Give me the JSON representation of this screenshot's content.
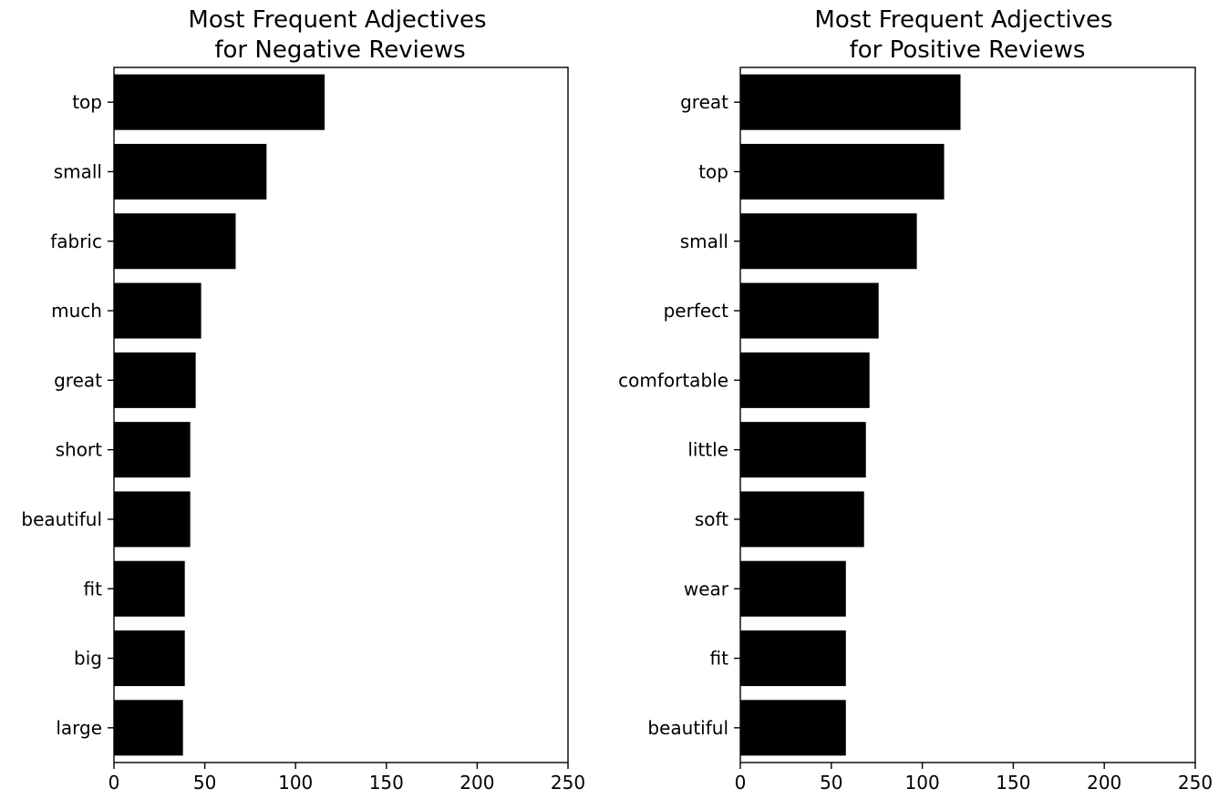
{
  "chart_data": [
    {
      "type": "bar",
      "orientation": "horizontal",
      "title_lines": [
        "Most Frequent Adjectives",
        "for Negative Reviews"
      ],
      "categories": [
        "top",
        "small",
        "fabric",
        "much",
        "great",
        "short",
        "beautiful",
        "fit",
        "big",
        "large"
      ],
      "values": [
        116,
        84,
        67,
        48,
        45,
        42,
        42,
        39,
        39,
        38
      ],
      "xlim": [
        0,
        250
      ],
      "xticks": [
        0,
        50,
        100,
        150,
        200,
        250
      ],
      "bar_color": "#000000",
      "grid": false
    },
    {
      "type": "bar",
      "orientation": "horizontal",
      "title_lines": [
        "Most Frequent Adjectives",
        "for Positive Reviews"
      ],
      "categories": [
        "great",
        "top",
        "small",
        "perfect",
        "comfortable",
        "little",
        "soft",
        "wear",
        "fit",
        "beautiful"
      ],
      "values": [
        121,
        112,
        97,
        76,
        71,
        69,
        68,
        58,
        58,
        58
      ],
      "xlim": [
        0,
        250
      ],
      "xticks": [
        0,
        50,
        100,
        150,
        200,
        250
      ],
      "bar_color": "#000000",
      "grid": false
    }
  ]
}
